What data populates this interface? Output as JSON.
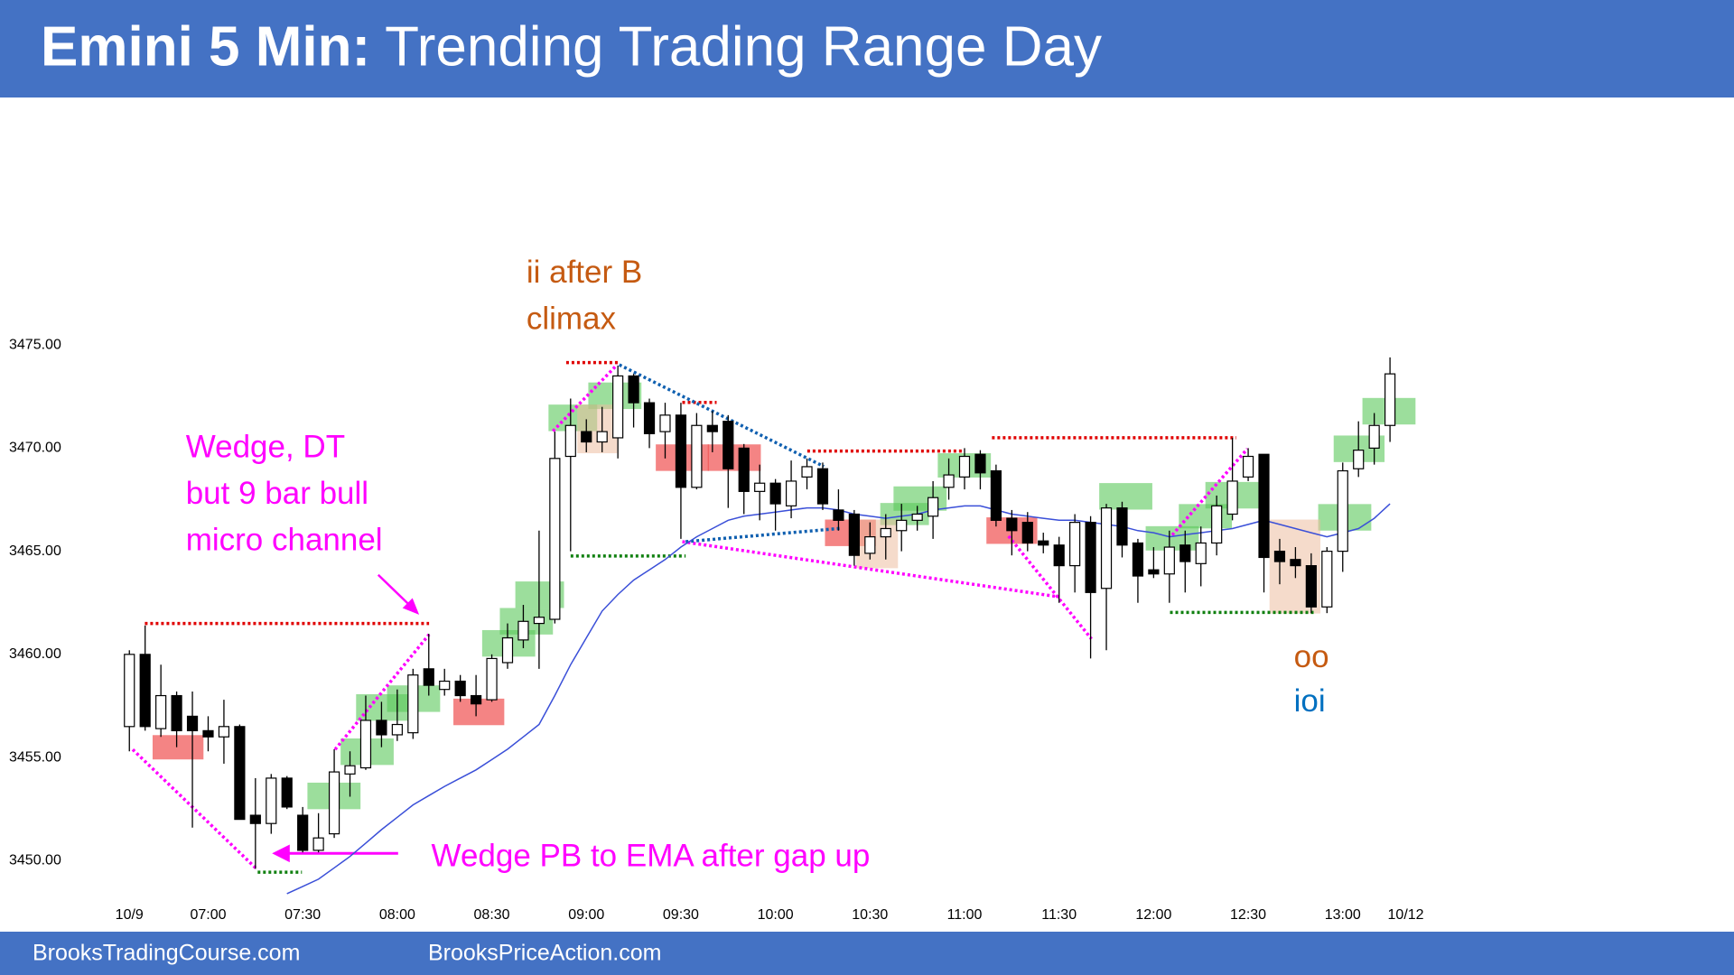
{
  "chart_data": {
    "type": "candlestick",
    "title": "Emini 5 Min:",
    "subtitle": "Trending Trading Range Day",
    "open": [
      3456.5,
      3460,
      3456.4,
      3458,
      3457,
      3456.3,
      3456,
      3456.5,
      3452.2,
      3451.8,
      3454,
      3452.2,
      3450.5,
      3451.3,
      3454.2,
      3454.5,
      3456.8,
      3456.1,
      3456.2,
      3459.3,
      3458.3,
      3458.7,
      3458,
      3457.8,
      3459.6,
      3460.7,
      3461.5,
      3461.7,
      3469.6,
      3470.8,
      3470.3,
      3470.5,
      3473.5,
      3472.2,
      3470.8,
      3471.6,
      3468.1,
      3471.1,
      3471.3,
      3470,
      3467.9,
      3468.3,
      3467.2,
      3468.6,
      3469,
      3467,
      3466.8,
      3464.9,
      3465.7,
      3466,
      3466.5,
      3466.7,
      3468.1,
      3468.6,
      3469.7,
      3468.9,
      3466.6,
      3466.4,
      3465.5,
      3465.3,
      3464.3,
      3466.4,
      3463.2,
      3467.1,
      3465.4,
      3464.1,
      3463.9,
      3465.3,
      3464.4,
      3465.4,
      3466.8,
      3468.6,
      3469.7,
      3465,
      3464.6,
      3464.3,
      3462.3,
      3465,
      3469,
      3470,
      3471.1
    ],
    "high": [
      3460.2,
      3461.4,
      3459.5,
      3458.2,
      3458.2,
      3457,
      3457.8,
      3456.6,
      3454,
      3454.2,
      3454.1,
      3452.6,
      3452.3,
      3455.4,
      3455.3,
      3458,
      3457.7,
      3458.3,
      3459.3,
      3461,
      3459.3,
      3459,
      3459,
      3460,
      3461.5,
      3462.4,
      3466,
      3470.8,
      3472.4,
      3471.4,
      3472,
      3474,
      3473.6,
      3472.4,
      3472.2,
      3472.2,
      3471.7,
      3471.8,
      3471.6,
      3470.2,
      3469.2,
      3468.5,
      3469.4,
      3469.5,
      3469.3,
      3468,
      3467,
      3466.4,
      3466.8,
      3467.3,
      3467.2,
      3468.4,
      3469.5,
      3470,
      3469.9,
      3469.2,
      3467,
      3466.9,
      3465.9,
      3465.7,
      3466.8,
      3466.7,
      3467.3,
      3467.4,
      3465.6,
      3465.2,
      3466,
      3466,
      3466.2,
      3467.7,
      3470.5,
      3470,
      3469.7,
      3465.6,
      3465.2,
      3464.9,
      3465.2,
      3469.3,
      3471.3,
      3471.7,
      3474.4
    ],
    "low": [
      3455.3,
      3456.3,
      3456,
      3455.5,
      3451.6,
      3455.3,
      3454.7,
      3452,
      3449.6,
      3451.3,
      3452.5,
      3450.4,
      3450.4,
      3451.1,
      3453.1,
      3454.4,
      3455.5,
      3455.8,
      3455.9,
      3458,
      3458,
      3457.7,
      3457,
      3457.7,
      3459.3,
      3460.3,
      3459.3,
      3461.5,
      3465,
      3469.8,
      3469.8,
      3469.5,
      3471,
      3470,
      3469.5,
      3465.6,
      3468,
      3469.8,
      3467.1,
      3466.8,
      3466.5,
      3466,
      3466.6,
      3468,
      3467,
      3466,
      3464.3,
      3464.6,
      3464.6,
      3465,
      3466,
      3465.6,
      3467.5,
      3468,
      3468,
      3466.2,
      3464.8,
      3465,
      3464.9,
      3462.5,
      3463,
      3459.8,
      3460.2,
      3464.7,
      3462.5,
      3463.7,
      3462.5,
      3463,
      3463.3,
      3464.8,
      3466.5,
      3468.4,
      3463,
      3463.4,
      3463.7,
      3462,
      3462,
      3464,
      3468.6,
      3469.2,
      3470.3
    ],
    "close": [
      3460,
      3456.5,
      3458,
      3456.3,
      3456.3,
      3456,
      3456.5,
      3452,
      3451.8,
      3454,
      3452.6,
      3450.5,
      3451.1,
      3454.3,
      3454.6,
      3456.8,
      3456.1,
      3456.6,
      3459,
      3458.5,
      3458.7,
      3458,
      3457.6,
      3459.8,
      3460.8,
      3461.6,
      3461.8,
      3469.5,
      3471.1,
      3470.3,
      3470.8,
      3473.5,
      3472.2,
      3470.7,
      3471.6,
      3468.1,
      3471.1,
      3470.8,
      3469,
      3467.9,
      3468.3,
      3467.3,
      3468.4,
      3469.1,
      3467.3,
      3466.5,
      3464.8,
      3465.7,
      3466.1,
      3466.5,
      3466.8,
      3467.6,
      3468.7,
      3469.6,
      3468.8,
      3466.5,
      3466,
      3465.4,
      3465.3,
      3464.3,
      3466.4,
      3463,
      3467.1,
      3465.3,
      3463.8,
      3463.9,
      3465.2,
      3464.5,
      3465.4,
      3467.2,
      3468.4,
      3469.6,
      3464.7,
      3464.5,
      3464.3,
      3462.3,
      3465,
      3468.9,
      3469.9,
      3471.1,
      3473.6
    ],
    "ema": {
      "color": "#3a4fd8",
      "values": [
        null,
        null,
        null,
        null,
        null,
        null,
        null,
        null,
        null,
        null,
        3448.4,
        3448.75,
        3449.1,
        3449.65,
        3450.2,
        3450.85,
        3451.5,
        3452.1,
        3452.7,
        3453.15,
        3453.6,
        3454,
        3454.4,
        3454.9,
        3455.4,
        3456,
        3456.6,
        3458,
        3459.5,
        3460.8,
        3462.1,
        3462.9,
        3463.6,
        3464.1,
        3464.6,
        3465.2,
        3465.7,
        3466.1,
        3466.5,
        3466.7,
        3466.8,
        3466.9,
        3467,
        3467.1,
        3467.1,
        3467,
        3466.8,
        3466.7,
        3466.6,
        3466.7,
        3466.8,
        3467,
        3467.1,
        3467.2,
        3467.2,
        3467,
        3466.8,
        3466.7,
        3466.6,
        3466.5,
        3466.5,
        3466.4,
        3466.3,
        3466.2,
        3466,
        3465.9,
        3465.7,
        3465.8,
        3465.9,
        3466,
        3466.1,
        3466.3,
        3466.5,
        3466.3,
        3466.1,
        3465.9,
        3465.7,
        3465.9,
        3466.1,
        3466.6,
        3467.3
      ]
    },
    "xlim": [
      -1,
      82
    ],
    "ylim": [
      3448,
      3487
    ],
    "xticks": [
      {
        "value": 0,
        "label": "10/9"
      },
      {
        "value": 5,
        "label": "07:00"
      },
      {
        "value": 11,
        "label": "07:30"
      },
      {
        "value": 17,
        "label": "08:00"
      },
      {
        "value": 23,
        "label": "08:30"
      },
      {
        "value": 29,
        "label": "09:00"
      },
      {
        "value": 35,
        "label": "09:30"
      },
      {
        "value": 41,
        "label": "10:00"
      },
      {
        "value": 47,
        "label": "10:30"
      },
      {
        "value": 53,
        "label": "11:00"
      },
      {
        "value": 59,
        "label": "11:30"
      },
      {
        "value": 65,
        "label": "12:00"
      },
      {
        "value": 71,
        "label": "12:30"
      },
      {
        "value": 77,
        "label": "13:00"
      },
      {
        "value": 81,
        "label": "10/12"
      }
    ],
    "yticks": [
      {
        "value": 3450,
        "label": "3450.00"
      },
      {
        "value": 3455,
        "label": "3455.00"
      },
      {
        "value": 3460,
        "label": "3460.00"
      },
      {
        "value": 3465,
        "label": "3465.00"
      },
      {
        "value": 3470,
        "label": "3470.00"
      },
      {
        "value": 3475,
        "label": "3475.00"
      }
    ],
    "annotations": [
      {
        "lines": [
          "ii after B",
          "climax"
        ],
        "color": "#c55a11"
      },
      {
        "lines": [
          "Wedge, DT",
          "but 9 bar bull",
          "micro channel"
        ],
        "color": "#ff00ff"
      },
      {
        "lines": [
          "Wedge PB to EMA after gap up"
        ],
        "color": "#ff00ff"
      },
      {
        "lines": [
          "oo"
        ],
        "color": "#c55a11"
      },
      {
        "lines": [
          "ioi"
        ],
        "color": "#0070c0"
      }
    ]
  },
  "footer": [
    "BrooksTradingCourse.com",
    "BrooksPriceAction.com"
  ]
}
